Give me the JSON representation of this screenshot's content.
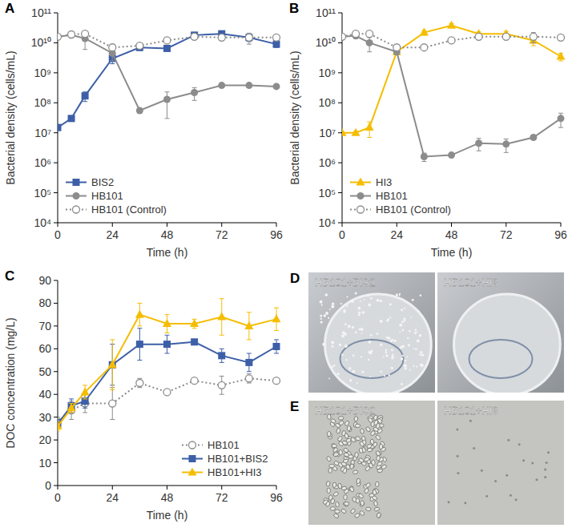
{
  "chart_data": [
    {
      "type": "line",
      "panel": "A",
      "x_label": "Time (h)",
      "y_label": "Bacterial density (cells/mL)",
      "log": "y",
      "legend": "lower left",
      "x": [
        0,
        6,
        12,
        24,
        36,
        48,
        60,
        72,
        84,
        96
      ],
      "xlim": [
        0,
        96
      ],
      "xticks": [
        0,
        24,
        48,
        72,
        96
      ],
      "ylim": [
        10000,
        100000000000
      ],
      "yticks": [
        {
          "value": 10000,
          "label": "10⁴"
        },
        {
          "value": 100000,
          "label": "10⁵"
        },
        {
          "value": 1000000,
          "label": "10⁶"
        },
        {
          "value": 10000000,
          "label": "10⁷"
        },
        {
          "value": 100000000,
          "label": "10⁸"
        },
        {
          "value": 1000000000,
          "label": "10⁹"
        },
        {
          "value": 10000000000,
          "label": "10¹⁰"
        },
        {
          "value": 100000000000,
          "label": "10¹¹"
        }
      ],
      "series": [
        {
          "name": "BIS2",
          "color": "#3d5fa8",
          "marker": "square",
          "line_style": "solid",
          "values": [
            15000000,
            30000000,
            170000000,
            3000000000,
            7000000000,
            6500000000,
            18000000000,
            20000000000,
            15000000000,
            9000000000
          ],
          "errors": [
            3000000,
            5000000,
            60000000,
            1000000000,
            1500000000,
            1000000000,
            3000000000,
            5000000000,
            4000000000,
            2000000000
          ]
        },
        {
          "name": "HB101",
          "color": "#8c8c8c",
          "marker": "circle",
          "line_style": "solid",
          "values": [
            16000000000,
            18000000000,
            14000000000,
            4500000000,
            55000000,
            130000000,
            220000000,
            380000000,
            380000000,
            350000000
          ],
          "errors": [
            3000000000,
            3000000000,
            8000000000,
            2000000000,
            10000000,
            100000000,
            100000000,
            50000000,
            50000000,
            50000000
          ]
        },
        {
          "name": "HB101 (Control)",
          "color": "#8c8c8c",
          "marker": "open-circle",
          "line_style": "dotted",
          "values": [
            16000000000,
            19000000000,
            20000000000,
            7000000000,
            8000000000,
            12000000000,
            16000000000,
            15000000000,
            15000000000,
            15000000000
          ],
          "errors": [
            3000000000,
            4000000000,
            4000000000,
            2000000000,
            1000000000,
            2000000000,
            2000000000,
            3000000000,
            6000000000,
            3000000000
          ]
        }
      ]
    },
    {
      "type": "line",
      "panel": "B",
      "x_label": "Time (h)",
      "y_label": "Bacterial density (cells/mL)",
      "log": "y",
      "legend": "lower left",
      "x": [
        0,
        6,
        12,
        24,
        36,
        48,
        60,
        72,
        84,
        96
      ],
      "xlim": [
        0,
        96
      ],
      "xticks": [
        0,
        24,
        48,
        72,
        96
      ],
      "ylim": [
        10000,
        100000000000
      ],
      "yticks": [
        {
          "value": 10000,
          "label": "10⁴"
        },
        {
          "value": 100000,
          "label": "10⁵"
        },
        {
          "value": 1000000,
          "label": "10⁶"
        },
        {
          "value": 10000000,
          "label": "10⁷"
        },
        {
          "value": 100000000,
          "label": "10⁸"
        },
        {
          "value": 1000000000,
          "label": "10⁹"
        },
        {
          "value": 10000000000,
          "label": "10¹⁰"
        },
        {
          "value": 100000000000,
          "label": "10¹¹"
        }
      ],
      "series": [
        {
          "name": "HI3",
          "color": "#f5bd00",
          "marker": "triangle",
          "line_style": "solid",
          "values": [
            10000000,
            10000000,
            15000000,
            5000000000,
            22000000000,
            38000000000,
            20000000000,
            20000000000,
            12000000000,
            3500000000
          ],
          "errors": [
            1000000,
            1000000,
            8000000,
            1000000000,
            4000000000,
            6000000000,
            3000000000,
            4000000000,
            4000000000,
            1000000000
          ]
        },
        {
          "name": "HB101",
          "color": "#8c8c8c",
          "marker": "circle",
          "line_style": "solid",
          "values": [
            16000000000,
            17000000000,
            10000000000,
            5000000000,
            1600000,
            1800000,
            4500000,
            4200000,
            7000000,
            30000000
          ],
          "errors": [
            3000000000,
            3000000000,
            5000000000,
            1000000000,
            500000,
            200000,
            2000000,
            2000000,
            1000000,
            15000000
          ]
        },
        {
          "name": "HB101 (Control)",
          "color": "#8c8c8c",
          "marker": "open-circle",
          "line_style": "dotted",
          "values": [
            16000000000,
            20000000000,
            20000000000,
            7000000000,
            7000000000,
            12000000000,
            16000000000,
            16000000000,
            16000000000,
            15000000000
          ],
          "errors": [
            3000000000,
            3000000000,
            3000000000,
            1000000000,
            1000000000,
            2000000000,
            2000000000,
            3000000000,
            6000000000,
            3000000000
          ]
        }
      ]
    },
    {
      "type": "line",
      "panel": "C",
      "x_label": "Time (h)",
      "y_label": "DOC concentration (mg/L)",
      "legend": "lower right",
      "x": [
        0,
        6,
        12,
        24,
        36,
        48,
        60,
        72,
        84,
        96
      ],
      "xlim": [
        0,
        96
      ],
      "xticks": [
        0,
        24,
        48,
        72,
        96
      ],
      "ylim": [
        0,
        90
      ],
      "yticks": [
        0,
        10,
        20,
        30,
        40,
        50,
        60,
        70,
        80,
        90
      ],
      "series": [
        {
          "name": "HB101",
          "color": "#8c8c8c",
          "marker": "open-circle",
          "line_style": "dotted",
          "values": [
            28,
            33,
            36,
            36,
            45,
            41,
            46,
            44,
            47,
            46
          ],
          "errors": [
            2,
            4,
            4,
            7,
            2,
            1,
            1,
            4,
            2,
            1
          ]
        },
        {
          "name": "HB101+BIS2",
          "color": "#3d5fa8",
          "marker": "square",
          "line_style": "solid",
          "values": [
            27,
            35,
            37,
            53,
            62,
            62,
            63,
            57,
            54,
            61
          ],
          "errors": [
            2,
            3,
            3,
            9,
            7,
            4,
            1,
            3,
            4,
            3
          ]
        },
        {
          "name": "HB101+HI3",
          "color": "#f5bd00",
          "marker": "triangle",
          "line_style": "solid",
          "values": [
            26,
            34,
            41,
            53,
            75,
            71,
            71,
            74,
            70,
            73
          ],
          "errors": [
            2,
            2,
            3,
            11,
            5,
            4,
            2,
            8,
            6,
            5
          ]
        }
      ]
    }
  ],
  "photos": [
    {
      "panel": "D",
      "labels": [
        "HB101+BIS2",
        "HB101+HI3"
      ]
    },
    {
      "panel": "E",
      "labels": [
        "HB101+BIS2",
        "HB101+HI3"
      ]
    }
  ]
}
